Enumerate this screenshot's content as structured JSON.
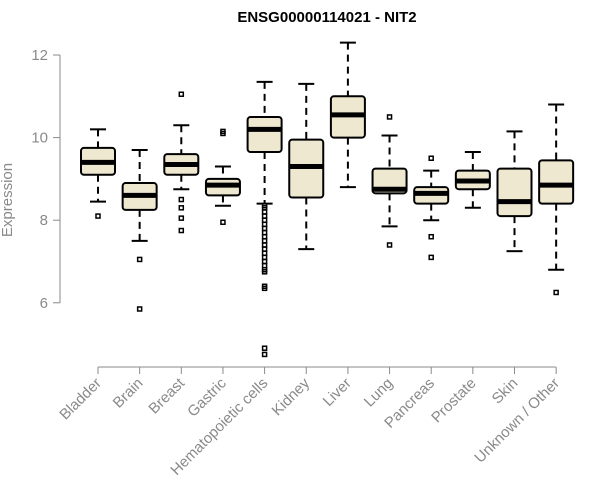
{
  "chart_data": {
    "type": "boxplot",
    "title": "ENSG00000114021 - NIT2",
    "xlabel": "",
    "ylabel": "Expression",
    "ylim": [
      4.6,
      12.4
    ],
    "yticks": [
      6,
      8,
      10,
      12
    ],
    "categories": [
      "Bladder",
      "Brain",
      "Breast",
      "Gastric",
      "Hematopoietic cells",
      "Kidney",
      "Liver",
      "Lung",
      "Pancreas",
      "Prostate",
      "Skin",
      "Unknown / Other"
    ],
    "colors": {
      "box_fill": "#efe8d0",
      "stroke": "#000000",
      "axis": "#8a8a8a"
    },
    "boxes": [
      {
        "name": "Bladder",
        "whisker_low": 8.45,
        "q1": 9.1,
        "median": 9.4,
        "q3": 9.75,
        "whisker_high": 10.2,
        "outliers": [
          8.1
        ]
      },
      {
        "name": "Brain",
        "whisker_low": 7.5,
        "q1": 8.25,
        "median": 8.6,
        "q3": 8.9,
        "whisker_high": 9.7,
        "outliers": [
          7.05,
          5.85
        ]
      },
      {
        "name": "Breast",
        "whisker_low": 8.75,
        "q1": 9.1,
        "median": 9.35,
        "q3": 9.6,
        "whisker_high": 10.3,
        "outliers": [
          11.05,
          8.5,
          8.3,
          8.05,
          7.75
        ]
      },
      {
        "name": "Gastric",
        "whisker_low": 8.35,
        "q1": 8.6,
        "median": 8.85,
        "q3": 9.0,
        "whisker_high": 9.3,
        "outliers": [
          10.15,
          10.1,
          7.95
        ]
      },
      {
        "name": "Hematopoietic cells",
        "whisker_low": 8.4,
        "q1": 9.65,
        "median": 10.2,
        "q3": 10.5,
        "whisker_high": 11.35,
        "outliers": [
          8.35,
          8.3,
          8.2,
          8.1,
          8.0,
          7.9,
          7.8,
          7.7,
          7.6,
          7.5,
          7.4,
          7.3,
          7.2,
          7.1,
          7.0,
          6.9,
          6.8,
          6.75,
          6.4,
          6.35,
          4.9,
          4.75
        ]
      },
      {
        "name": "Kidney",
        "whisker_low": 7.3,
        "q1": 8.55,
        "median": 9.3,
        "q3": 9.95,
        "whisker_high": 11.3,
        "outliers": []
      },
      {
        "name": "Liver",
        "whisker_low": 8.8,
        "q1": 10.0,
        "median": 10.55,
        "q3": 11.0,
        "whisker_high": 12.3,
        "outliers": []
      },
      {
        "name": "Lung",
        "whisker_low": 7.85,
        "q1": 8.65,
        "median": 8.75,
        "q3": 9.25,
        "whisker_high": 10.05,
        "outliers": [
          10.5,
          7.4
        ]
      },
      {
        "name": "Pancreas",
        "whisker_low": 8.0,
        "q1": 8.4,
        "median": 8.65,
        "q3": 8.8,
        "whisker_high": 9.2,
        "outliers": [
          9.5,
          7.6,
          7.1
        ]
      },
      {
        "name": "Prostate",
        "whisker_low": 8.3,
        "q1": 8.75,
        "median": 8.95,
        "q3": 9.2,
        "whisker_high": 9.65,
        "outliers": []
      },
      {
        "name": "Skin",
        "whisker_low": 7.25,
        "q1": 8.1,
        "median": 8.45,
        "q3": 9.25,
        "whisker_high": 10.15,
        "outliers": []
      },
      {
        "name": "Unknown / Other",
        "whisker_low": 6.8,
        "q1": 8.4,
        "median": 8.85,
        "q3": 9.45,
        "whisker_high": 10.8,
        "outliers": [
          6.25
        ]
      }
    ]
  }
}
